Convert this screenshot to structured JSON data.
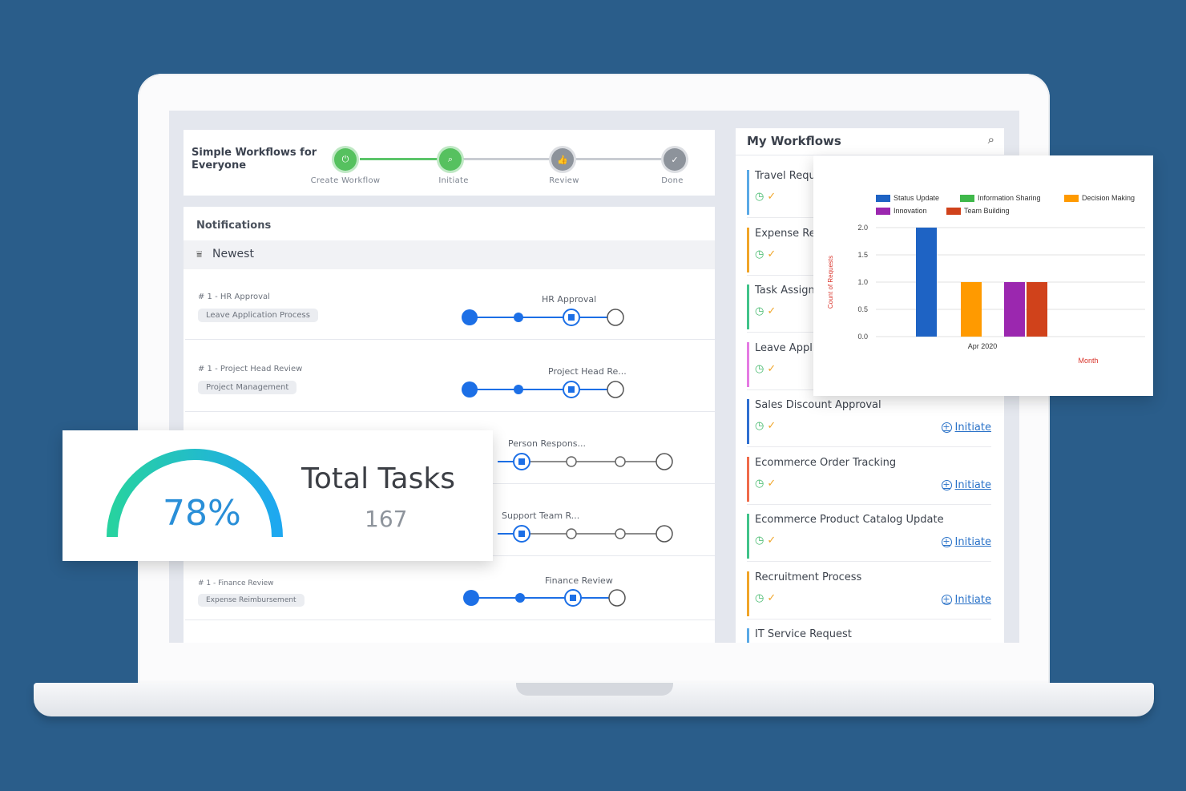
{
  "header": {
    "title": "Simple Workflows for Everyone",
    "steps": [
      {
        "label": "Create Workflow",
        "status": "done",
        "icon": "power-icon"
      },
      {
        "label": "Initiate",
        "status": "done",
        "icon": "search-icon"
      },
      {
        "label": "Review",
        "status": "pending",
        "icon": "thumbs-up-icon"
      },
      {
        "label": "Done",
        "status": "pending",
        "icon": "check-icon"
      }
    ]
  },
  "notifications": {
    "title": "Notifications",
    "sort_label": "Newest",
    "items": [
      {
        "id": "# 1 - HR Approval",
        "tag": "Leave Application Process",
        "stage": "HR Approval"
      },
      {
        "id": "# 1 - Project Head Review",
        "tag": "Project Management",
        "stage": "Project Head Re..."
      },
      {
        "id": "",
        "tag": "",
        "stage": "Person Respons..."
      },
      {
        "id": "",
        "tag": "",
        "stage": "Support Team R..."
      },
      {
        "id": "# 1 - Finance Review",
        "tag": "Expense Reimbursement",
        "stage": "Finance Review"
      }
    ]
  },
  "workflows": {
    "title": "My Workflows",
    "initiate_label": "Initiate",
    "items": [
      {
        "name": "Travel Requ",
        "color": "#5aa9e6"
      },
      {
        "name": "Expense Re",
        "color": "#f0a529"
      },
      {
        "name": "Task Assign",
        "color": "#41c38a"
      },
      {
        "name": "Leave Appli",
        "color": "#e57be3"
      },
      {
        "name": "Sales Discount Approval",
        "color": "#2f6fd0"
      },
      {
        "name": "Ecommerce Order Tracking",
        "color": "#ef6b4a"
      },
      {
        "name": "Ecommerce Product Catalog Update",
        "color": "#41c38a"
      },
      {
        "name": "Recruitment Process",
        "color": "#f0a529"
      },
      {
        "name": "IT Service Request",
        "color": "#5aa9e6"
      }
    ]
  },
  "tasks": {
    "title": "Total Tasks",
    "count": "167",
    "percent_label": "78%",
    "percent": 78
  },
  "chart_data": {
    "type": "bar",
    "categories": [
      "Apr 2020"
    ],
    "series": [
      {
        "name": "Status Update",
        "values": [
          2
        ],
        "color": "#1e63c4"
      },
      {
        "name": "Information Sharing",
        "values": [
          0
        ],
        "color": "#3fb84a"
      },
      {
        "name": "Decision Making",
        "values": [
          1
        ],
        "color": "#ff9a00"
      },
      {
        "name": "Innovation",
        "values": [
          1
        ],
        "color": "#9b27af"
      },
      {
        "name": "Team Building",
        "values": [
          1
        ],
        "color": "#d0421b"
      }
    ],
    "xlabel": "Month",
    "ylabel": "Count of Requests",
    "ylim": [
      0,
      2
    ],
    "yticks": [
      "0.0",
      "0.5",
      "1.0",
      "1.5",
      "2.0"
    ],
    "legend": "top"
  }
}
